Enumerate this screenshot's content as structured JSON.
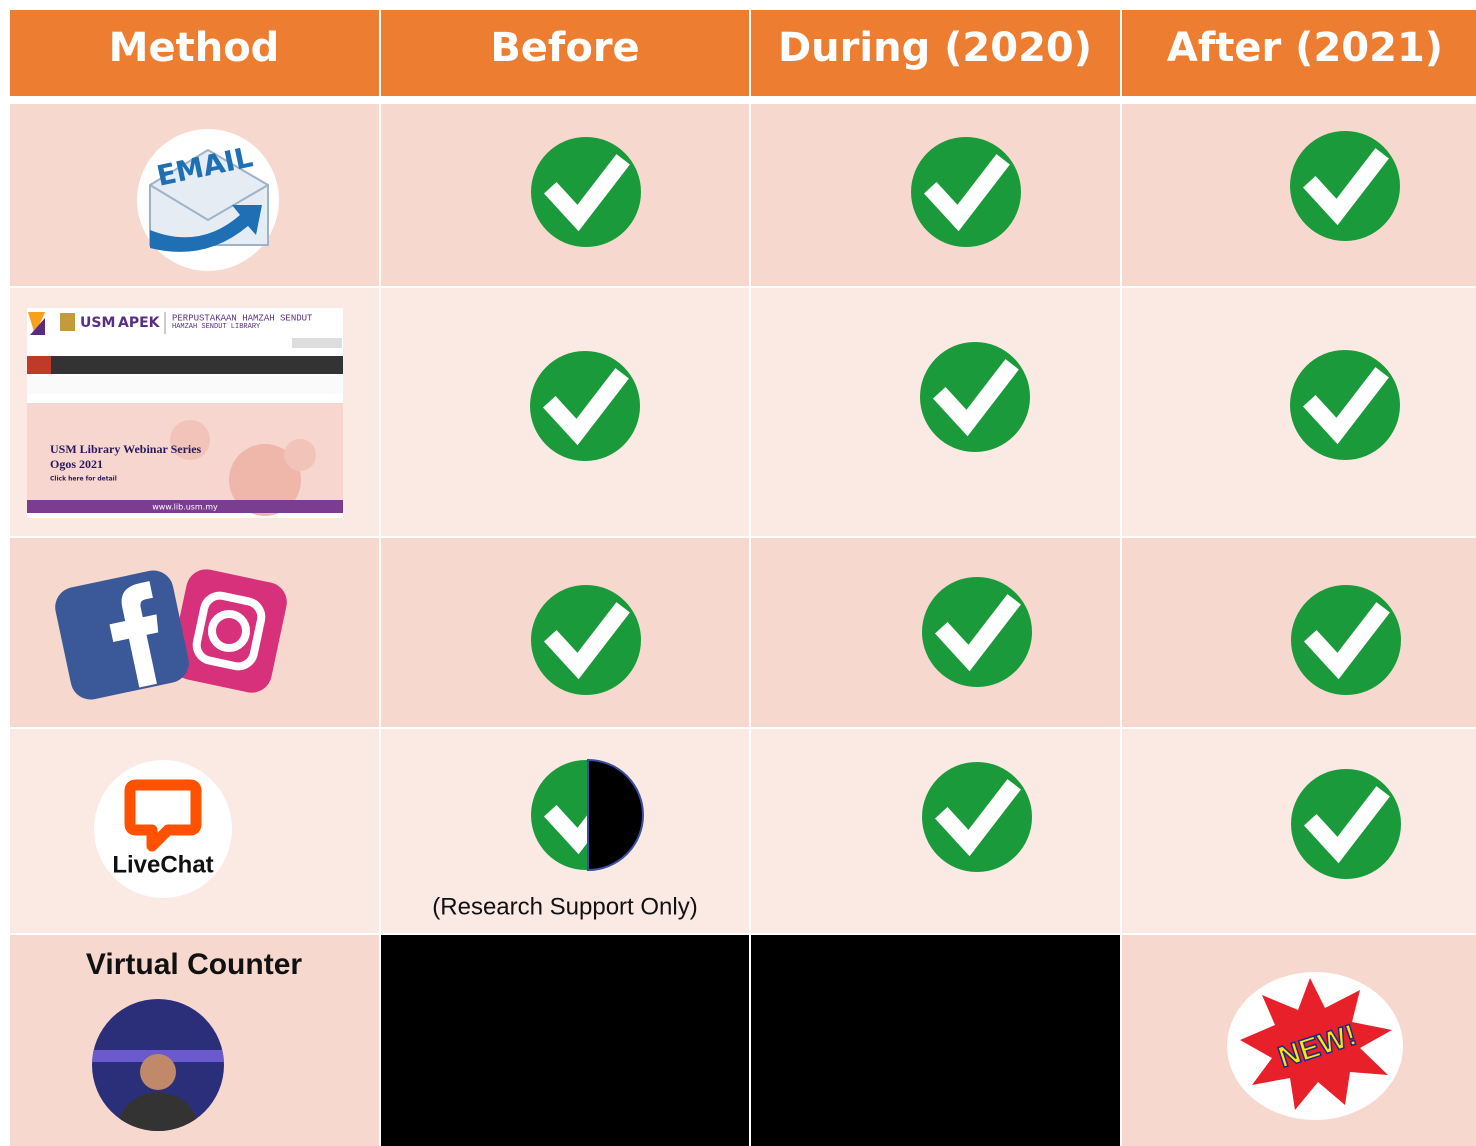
{
  "table": {
    "header": [
      "Method",
      "Before",
      "During  (2020)",
      "After (2021)"
    ],
    "rows": [
      {
        "method_icon_text": "EMAIL"
      },
      {
        "website": {
          "title": "PERPUSTAKAAN HAMZAH SENDUT",
          "subtitle": "HAMZAH SENDUT LIBRARY",
          "banner_title": "USM Library Webinar Series",
          "banner_date": "Ogos 2021",
          "banner_link": "Click here for detail",
          "url": "www.lib.usm.my"
        }
      },
      {},
      {
        "method_icon_text": "LiveChat",
        "before_note": "(Research Support Only)"
      },
      {
        "method_label": "Virtual Counter",
        "after_badge": "NEW!"
      }
    ]
  }
}
